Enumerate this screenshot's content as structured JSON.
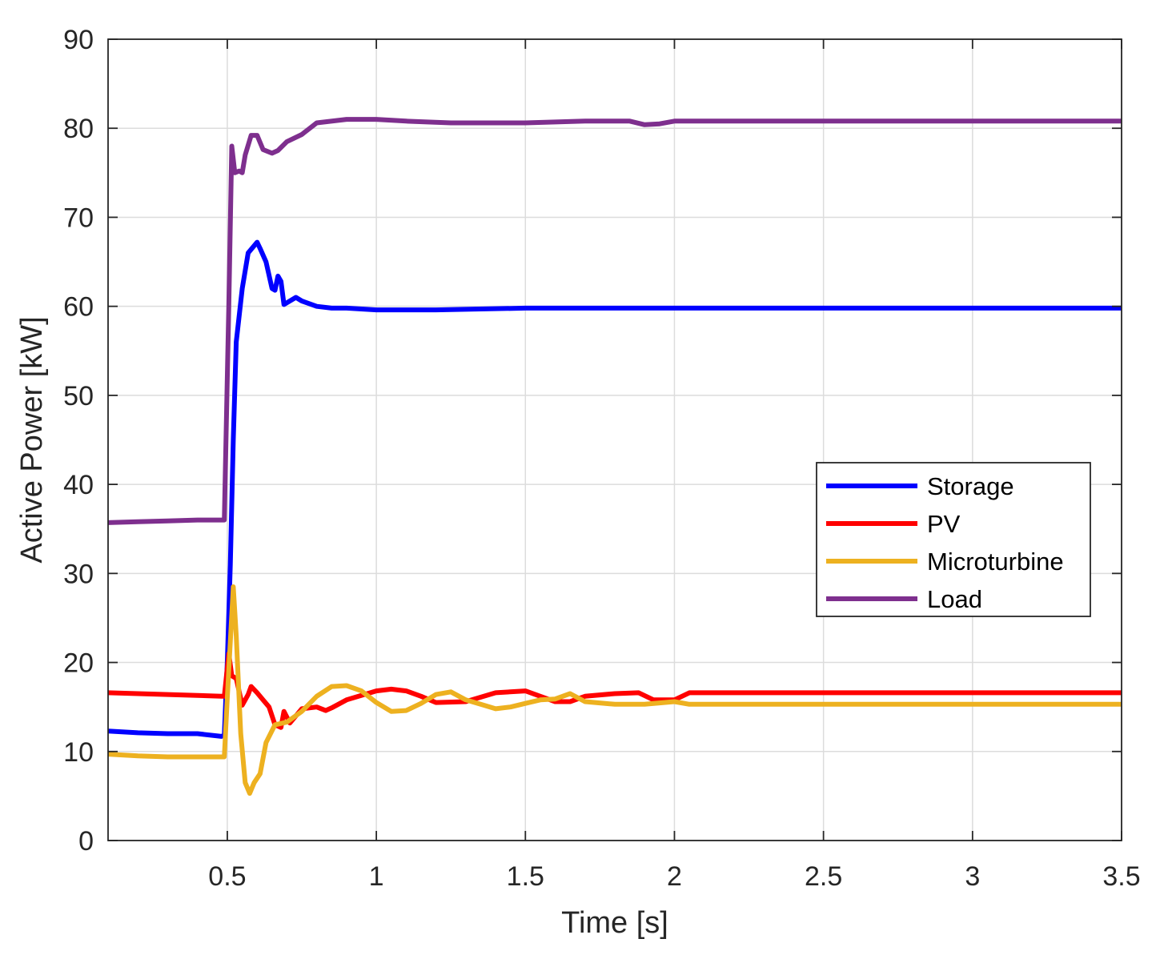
{
  "chart_data": {
    "type": "line",
    "title": "",
    "xlabel": "Time [s]",
    "ylabel": "Active Power [kW]",
    "xlim": [
      0.1,
      3.5
    ],
    "ylim": [
      0,
      90
    ],
    "xticks": [
      0.5,
      1,
      1.5,
      2,
      2.5,
      3,
      3.5
    ],
    "xtick_labels": [
      "0.5",
      "1",
      "1.5",
      "2",
      "2.5",
      "3",
      "3.5"
    ],
    "yticks": [
      0,
      10,
      20,
      30,
      40,
      50,
      60,
      70,
      80,
      90
    ],
    "ytick_labels": [
      "0",
      "10",
      "20",
      "30",
      "40",
      "50",
      "60",
      "70",
      "80",
      "90"
    ],
    "grid": true,
    "legend_position": "center-right",
    "series": [
      {
        "name": "Storage",
        "color": "#0000ff",
        "points": [
          [
            0.1,
            12.3
          ],
          [
            0.2,
            12.1
          ],
          [
            0.3,
            12.0
          ],
          [
            0.4,
            12.0
          ],
          [
            0.48,
            11.7
          ],
          [
            0.49,
            11.8
          ],
          [
            0.5,
            20
          ],
          [
            0.51,
            31
          ],
          [
            0.52,
            45
          ],
          [
            0.53,
            56
          ],
          [
            0.55,
            62
          ],
          [
            0.57,
            66
          ],
          [
            0.6,
            67.2
          ],
          [
            0.61,
            66.5
          ],
          [
            0.63,
            65
          ],
          [
            0.65,
            62
          ],
          [
            0.66,
            61.8
          ],
          [
            0.67,
            63.4
          ],
          [
            0.68,
            62.8
          ],
          [
            0.69,
            60.2
          ],
          [
            0.7,
            60.4
          ],
          [
            0.73,
            61
          ],
          [
            0.75,
            60.6
          ],
          [
            0.8,
            60.0
          ],
          [
            0.85,
            59.8
          ],
          [
            0.9,
            59.8
          ],
          [
            1.0,
            59.6
          ],
          [
            1.2,
            59.6
          ],
          [
            1.5,
            59.8
          ],
          [
            2.0,
            59.8
          ],
          [
            2.5,
            59.8
          ],
          [
            3.0,
            59.8
          ],
          [
            3.5,
            59.8
          ]
        ]
      },
      {
        "name": "PV",
        "color": "#ff0000",
        "points": [
          [
            0.1,
            16.6
          ],
          [
            0.2,
            16.5
          ],
          [
            0.3,
            16.4
          ],
          [
            0.4,
            16.3
          ],
          [
            0.48,
            16.2
          ],
          [
            0.49,
            16.2
          ],
          [
            0.505,
            21
          ],
          [
            0.515,
            18.5
          ],
          [
            0.53,
            18.2
          ],
          [
            0.55,
            15.2
          ],
          [
            0.57,
            16.4
          ],
          [
            0.58,
            17.3
          ],
          [
            0.6,
            16.6
          ],
          [
            0.62,
            15.8
          ],
          [
            0.64,
            15.0
          ],
          [
            0.66,
            13
          ],
          [
            0.68,
            12.7
          ],
          [
            0.69,
            14.5
          ],
          [
            0.71,
            13.2
          ],
          [
            0.73,
            14.0
          ],
          [
            0.75,
            14.8
          ],
          [
            0.8,
            15.0
          ],
          [
            0.83,
            14.6
          ],
          [
            0.85,
            14.9
          ],
          [
            0.9,
            15.8
          ],
          [
            1.0,
            16.8
          ],
          [
            1.05,
            17.0
          ],
          [
            1.1,
            16.8
          ],
          [
            1.15,
            16.2
          ],
          [
            1.2,
            15.5
          ],
          [
            1.3,
            15.6
          ],
          [
            1.4,
            16.6
          ],
          [
            1.5,
            16.8
          ],
          [
            1.55,
            16.2
          ],
          [
            1.6,
            15.6
          ],
          [
            1.65,
            15.6
          ],
          [
            1.7,
            16.2
          ],
          [
            1.8,
            16.5
          ],
          [
            1.88,
            16.6
          ],
          [
            1.93,
            15.8
          ],
          [
            2.0,
            15.8
          ],
          [
            2.05,
            16.6
          ],
          [
            2.5,
            16.6
          ],
          [
            3.0,
            16.6
          ],
          [
            3.5,
            16.6
          ]
        ]
      },
      {
        "name": "Microturbine",
        "color": "#edb120",
        "points": [
          [
            0.1,
            9.7
          ],
          [
            0.2,
            9.5
          ],
          [
            0.3,
            9.4
          ],
          [
            0.4,
            9.4
          ],
          [
            0.49,
            9.4
          ],
          [
            0.5,
            16
          ],
          [
            0.52,
            28.5
          ],
          [
            0.53,
            23
          ],
          [
            0.545,
            12
          ],
          [
            0.56,
            6.5
          ],
          [
            0.575,
            5.3
          ],
          [
            0.59,
            6.5
          ],
          [
            0.61,
            7.5
          ],
          [
            0.63,
            11
          ],
          [
            0.66,
            13
          ],
          [
            0.7,
            13.3
          ],
          [
            0.75,
            14.5
          ],
          [
            0.8,
            16.2
          ],
          [
            0.85,
            17.3
          ],
          [
            0.9,
            17.4
          ],
          [
            0.95,
            16.8
          ],
          [
            1.0,
            15.5
          ],
          [
            1.05,
            14.5
          ],
          [
            1.1,
            14.6
          ],
          [
            1.15,
            15.4
          ],
          [
            1.2,
            16.4
          ],
          [
            1.25,
            16.7
          ],
          [
            1.3,
            15.8
          ],
          [
            1.35,
            15.3
          ],
          [
            1.4,
            14.8
          ],
          [
            1.45,
            15.0
          ],
          [
            1.5,
            15.4
          ],
          [
            1.55,
            15.8
          ],
          [
            1.6,
            15.9
          ],
          [
            1.65,
            16.5
          ],
          [
            1.7,
            15.6
          ],
          [
            1.8,
            15.3
          ],
          [
            1.9,
            15.3
          ],
          [
            2.0,
            15.6
          ],
          [
            2.05,
            15.3
          ],
          [
            2.5,
            15.3
          ],
          [
            3.0,
            15.3
          ],
          [
            3.5,
            15.3
          ]
        ]
      },
      {
        "name": "Load",
        "color": "#7e2f8e",
        "points": [
          [
            0.1,
            35.7
          ],
          [
            0.2,
            35.8
          ],
          [
            0.3,
            35.9
          ],
          [
            0.4,
            36.0
          ],
          [
            0.49,
            36.0
          ],
          [
            0.505,
            60
          ],
          [
            0.515,
            78
          ],
          [
            0.525,
            75
          ],
          [
            0.54,
            75.2
          ],
          [
            0.55,
            75
          ],
          [
            0.56,
            77
          ],
          [
            0.58,
            79.2
          ],
          [
            0.6,
            79.2
          ],
          [
            0.62,
            77.6
          ],
          [
            0.65,
            77.2
          ],
          [
            0.67,
            77.5
          ],
          [
            0.7,
            78.5
          ],
          [
            0.75,
            79.3
          ],
          [
            0.8,
            80.6
          ],
          [
            0.9,
            81.0
          ],
          [
            1.0,
            81.0
          ],
          [
            1.1,
            80.8
          ],
          [
            1.25,
            80.6
          ],
          [
            1.5,
            80.6
          ],
          [
            1.7,
            80.8
          ],
          [
            1.85,
            80.8
          ],
          [
            1.9,
            80.4
          ],
          [
            1.95,
            80.5
          ],
          [
            2.0,
            80.8
          ],
          [
            2.5,
            80.8
          ],
          [
            3.0,
            80.8
          ],
          [
            3.5,
            80.8
          ]
        ]
      }
    ]
  }
}
